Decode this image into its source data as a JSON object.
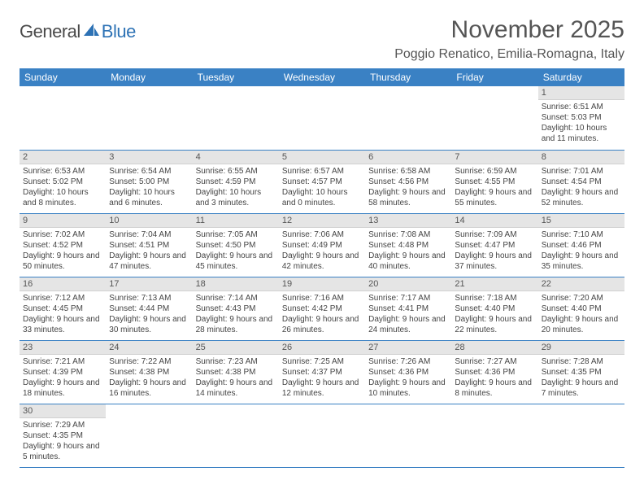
{
  "logo": {
    "text1": "General",
    "text2": "Blue"
  },
  "title": "November 2025",
  "location": "Poggio Renatico, Emilia-Romagna, Italy",
  "day_names": [
    "Sunday",
    "Monday",
    "Tuesday",
    "Wednesday",
    "Thursday",
    "Friday",
    "Saturday"
  ],
  "colors": {
    "header_bg": "#3a81c4",
    "header_text": "#ffffff",
    "daynum_bg": "#e5e5e5",
    "cell_border": "#3a81c4",
    "logo_accent": "#2d72b5",
    "title_color": "#555555",
    "body_text": "#444444",
    "background": "#ffffff"
  },
  "typography": {
    "month_title_fontsize": 30,
    "location_fontsize": 16,
    "day_header_fontsize": 12,
    "daynum_fontsize": 11,
    "info_fontsize": 10,
    "font_family": "Arial"
  },
  "layout": {
    "columns": 7,
    "rows": 6,
    "leading_blanks": 6
  },
  "days": [
    {
      "n": 1,
      "sunrise": "6:51 AM",
      "sunset": "5:03 PM",
      "daylight": "10 hours and 11 minutes."
    },
    {
      "n": 2,
      "sunrise": "6:53 AM",
      "sunset": "5:02 PM",
      "daylight": "10 hours and 8 minutes."
    },
    {
      "n": 3,
      "sunrise": "6:54 AM",
      "sunset": "5:00 PM",
      "daylight": "10 hours and 6 minutes."
    },
    {
      "n": 4,
      "sunrise": "6:55 AM",
      "sunset": "4:59 PM",
      "daylight": "10 hours and 3 minutes."
    },
    {
      "n": 5,
      "sunrise": "6:57 AM",
      "sunset": "4:57 PM",
      "daylight": "10 hours and 0 minutes."
    },
    {
      "n": 6,
      "sunrise": "6:58 AM",
      "sunset": "4:56 PM",
      "daylight": "9 hours and 58 minutes."
    },
    {
      "n": 7,
      "sunrise": "6:59 AM",
      "sunset": "4:55 PM",
      "daylight": "9 hours and 55 minutes."
    },
    {
      "n": 8,
      "sunrise": "7:01 AM",
      "sunset": "4:54 PM",
      "daylight": "9 hours and 52 minutes."
    },
    {
      "n": 9,
      "sunrise": "7:02 AM",
      "sunset": "4:52 PM",
      "daylight": "9 hours and 50 minutes."
    },
    {
      "n": 10,
      "sunrise": "7:04 AM",
      "sunset": "4:51 PM",
      "daylight": "9 hours and 47 minutes."
    },
    {
      "n": 11,
      "sunrise": "7:05 AM",
      "sunset": "4:50 PM",
      "daylight": "9 hours and 45 minutes."
    },
    {
      "n": 12,
      "sunrise": "7:06 AM",
      "sunset": "4:49 PM",
      "daylight": "9 hours and 42 minutes."
    },
    {
      "n": 13,
      "sunrise": "7:08 AM",
      "sunset": "4:48 PM",
      "daylight": "9 hours and 40 minutes."
    },
    {
      "n": 14,
      "sunrise": "7:09 AM",
      "sunset": "4:47 PM",
      "daylight": "9 hours and 37 minutes."
    },
    {
      "n": 15,
      "sunrise": "7:10 AM",
      "sunset": "4:46 PM",
      "daylight": "9 hours and 35 minutes."
    },
    {
      "n": 16,
      "sunrise": "7:12 AM",
      "sunset": "4:45 PM",
      "daylight": "9 hours and 33 minutes."
    },
    {
      "n": 17,
      "sunrise": "7:13 AM",
      "sunset": "4:44 PM",
      "daylight": "9 hours and 30 minutes."
    },
    {
      "n": 18,
      "sunrise": "7:14 AM",
      "sunset": "4:43 PM",
      "daylight": "9 hours and 28 minutes."
    },
    {
      "n": 19,
      "sunrise": "7:16 AM",
      "sunset": "4:42 PM",
      "daylight": "9 hours and 26 minutes."
    },
    {
      "n": 20,
      "sunrise": "7:17 AM",
      "sunset": "4:41 PM",
      "daylight": "9 hours and 24 minutes."
    },
    {
      "n": 21,
      "sunrise": "7:18 AM",
      "sunset": "4:40 PM",
      "daylight": "9 hours and 22 minutes."
    },
    {
      "n": 22,
      "sunrise": "7:20 AM",
      "sunset": "4:40 PM",
      "daylight": "9 hours and 20 minutes."
    },
    {
      "n": 23,
      "sunrise": "7:21 AM",
      "sunset": "4:39 PM",
      "daylight": "9 hours and 18 minutes."
    },
    {
      "n": 24,
      "sunrise": "7:22 AM",
      "sunset": "4:38 PM",
      "daylight": "9 hours and 16 minutes."
    },
    {
      "n": 25,
      "sunrise": "7:23 AM",
      "sunset": "4:38 PM",
      "daylight": "9 hours and 14 minutes."
    },
    {
      "n": 26,
      "sunrise": "7:25 AM",
      "sunset": "4:37 PM",
      "daylight": "9 hours and 12 minutes."
    },
    {
      "n": 27,
      "sunrise": "7:26 AM",
      "sunset": "4:36 PM",
      "daylight": "9 hours and 10 minutes."
    },
    {
      "n": 28,
      "sunrise": "7:27 AM",
      "sunset": "4:36 PM",
      "daylight": "9 hours and 8 minutes."
    },
    {
      "n": 29,
      "sunrise": "7:28 AM",
      "sunset": "4:35 PM",
      "daylight": "9 hours and 7 minutes."
    },
    {
      "n": 30,
      "sunrise": "7:29 AM",
      "sunset": "4:35 PM",
      "daylight": "9 hours and 5 minutes."
    }
  ],
  "labels": {
    "sunrise": "Sunrise:",
    "sunset": "Sunset:",
    "daylight": "Daylight:"
  }
}
